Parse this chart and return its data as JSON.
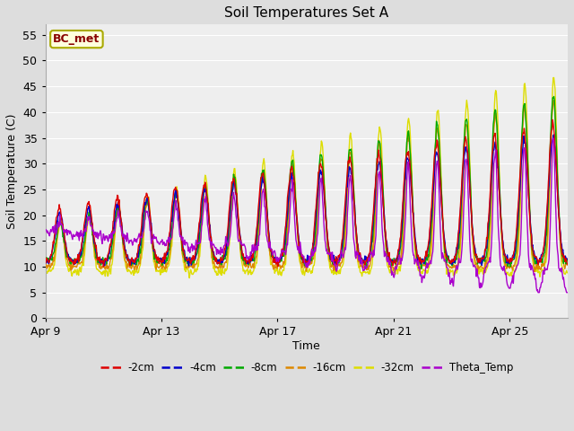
{
  "title": "Soil Temperatures Set A",
  "xlabel": "Time",
  "ylabel": "Soil Temperature (C)",
  "ylim": [
    0,
    57
  ],
  "yticks": [
    0,
    5,
    10,
    15,
    20,
    25,
    30,
    35,
    40,
    45,
    50,
    55
  ],
  "colors": {
    "-2cm": "#dd0000",
    "-4cm": "#0000cc",
    "-8cm": "#00aa00",
    "-16cm": "#dd8800",
    "-32cm": "#dddd00",
    "Theta_Temp": "#aa00cc"
  },
  "legend_labels": [
    "-2cm",
    "-4cm",
    "-8cm",
    "-16cm",
    "-32cm",
    "Theta_Temp"
  ],
  "annotation": "BC_met",
  "annotation_color": "#880000",
  "annotation_bg": "#ffffdd",
  "annotation_edge": "#aaaa00",
  "bg_color": "#dddddd",
  "plot_bg": "#eeeeee",
  "grid_color": "#ffffff",
  "xtick_labels": [
    "Apr 9",
    "Apr 13",
    "Apr 17",
    "Apr 21",
    "Apr 25"
  ],
  "xtick_positions": [
    0,
    4,
    8,
    12,
    16
  ],
  "n_days": 18,
  "figsize": [
    6.4,
    4.8
  ],
  "dpi": 100
}
